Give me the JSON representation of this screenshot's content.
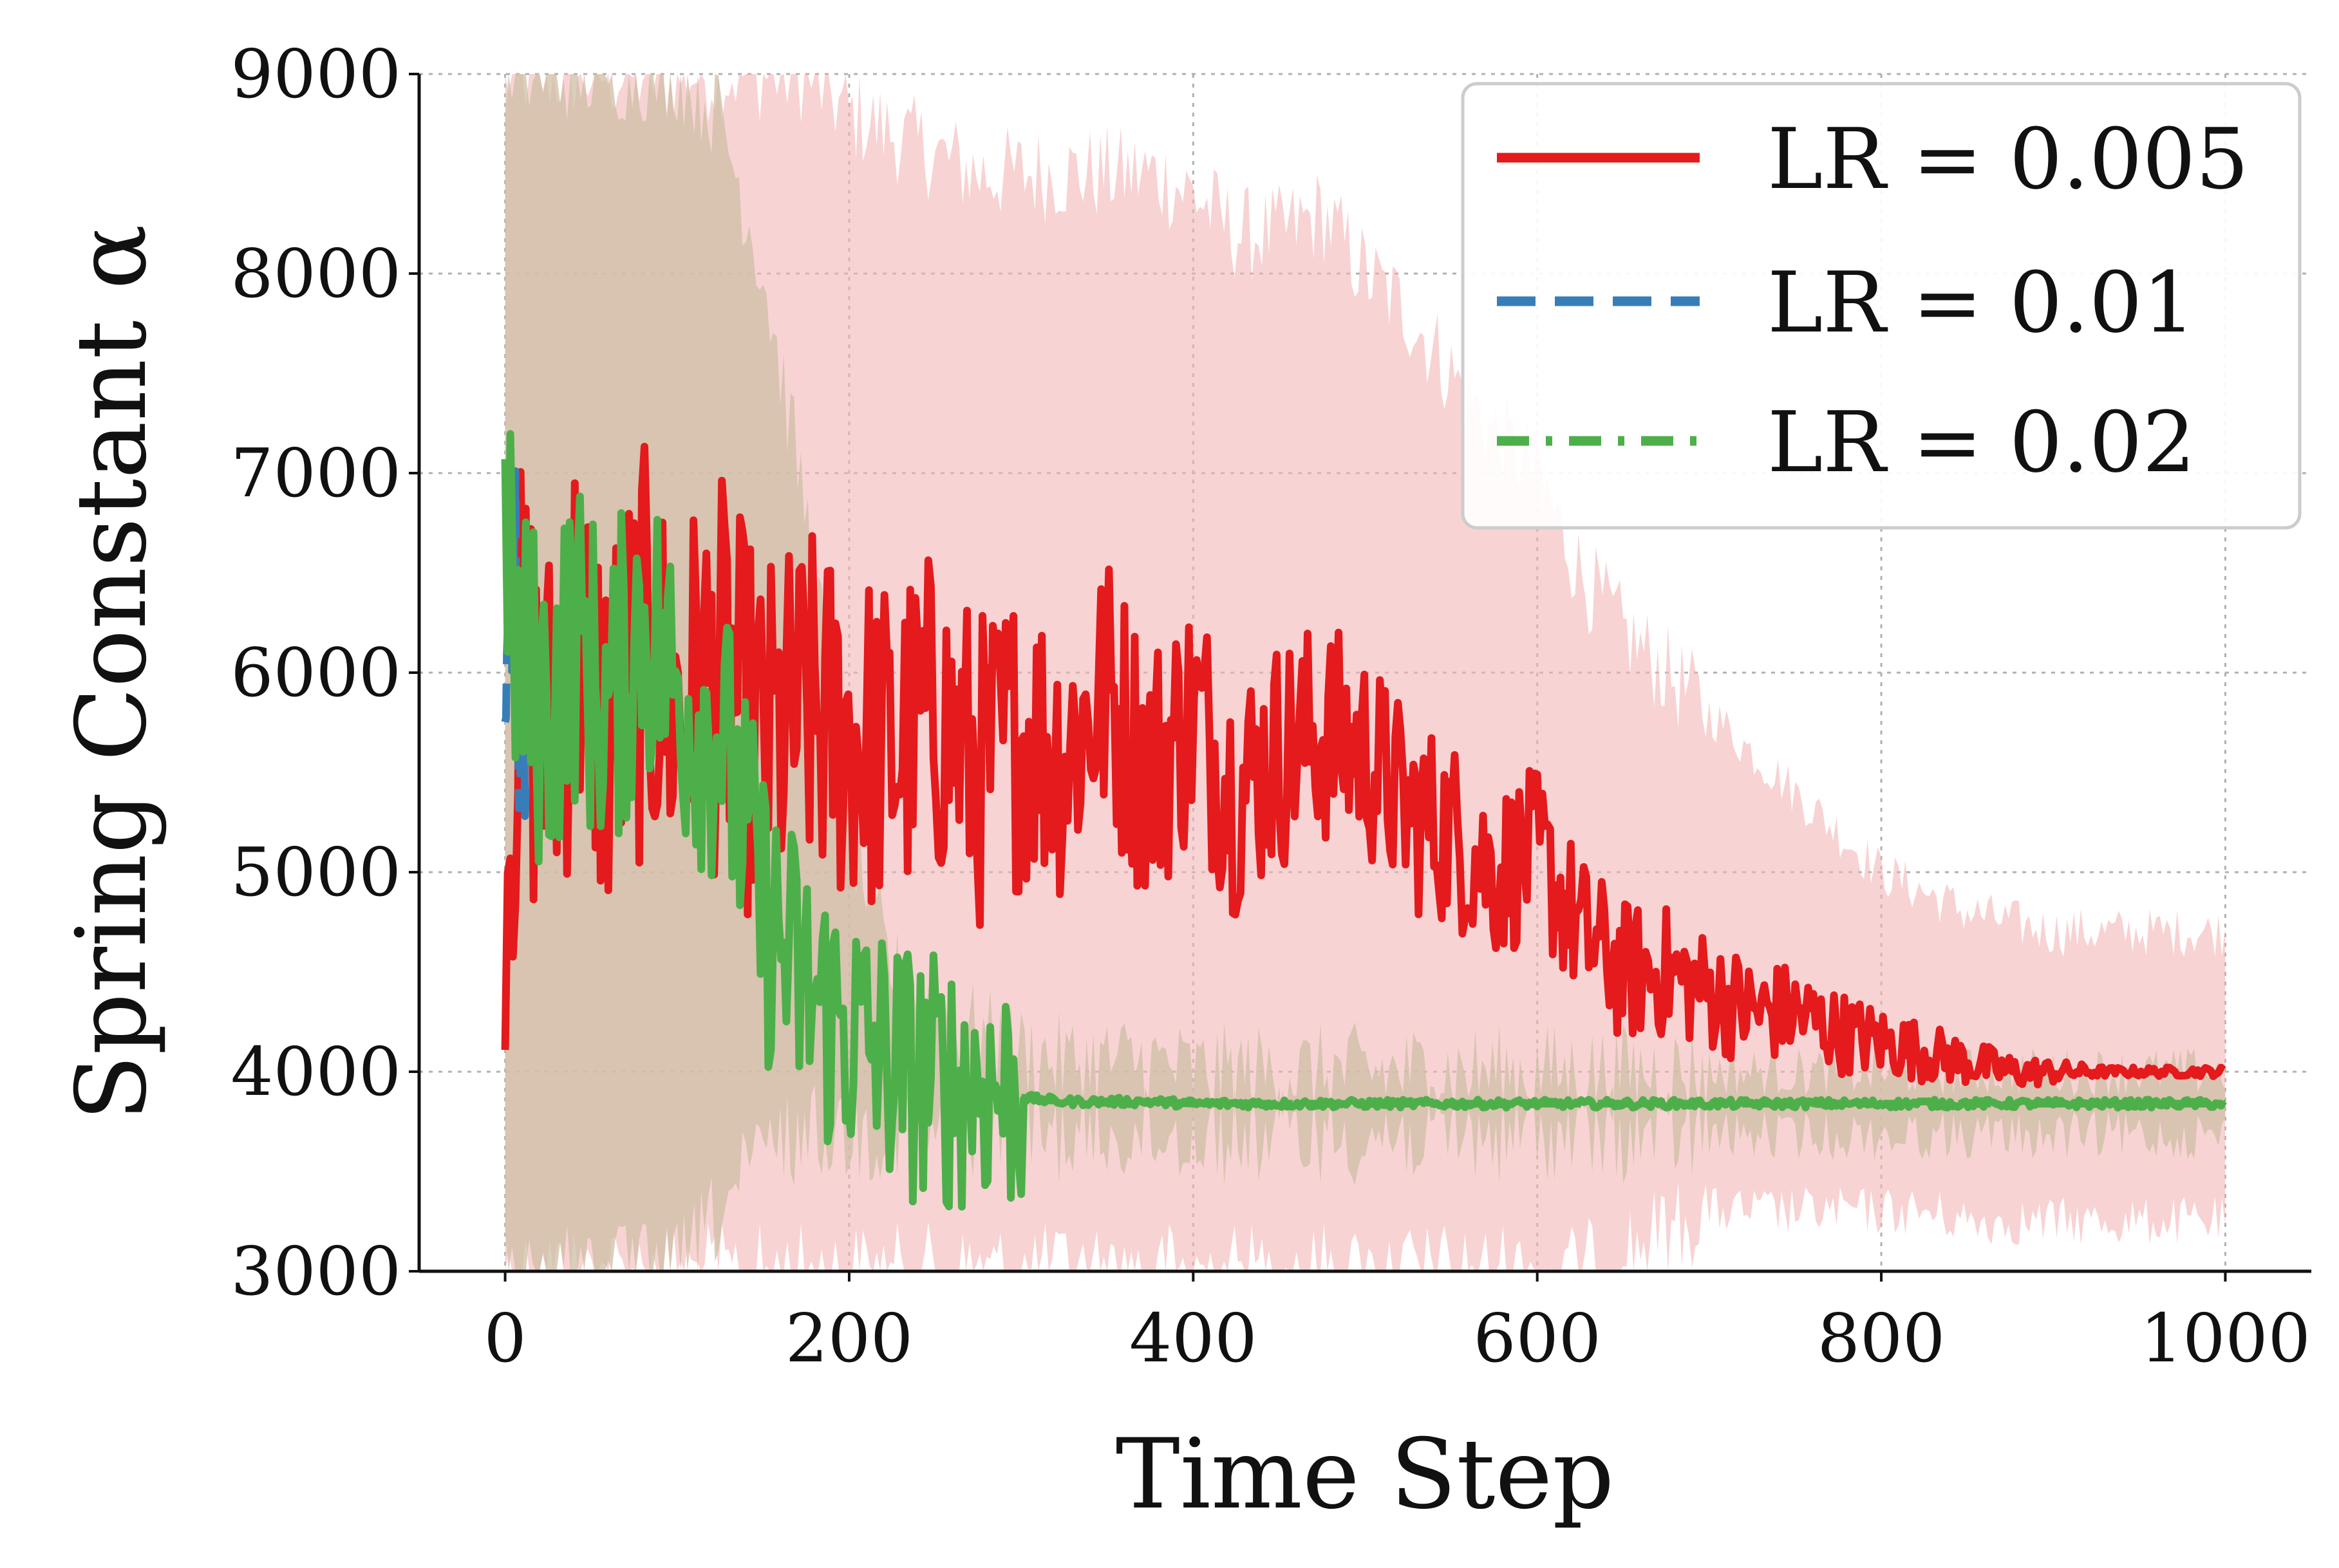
{
  "chart_data": {
    "type": "line",
    "xlabel": "Time Step",
    "ylabel": "Spring Constant α",
    "xlim": [
      -50,
      1050
    ],
    "ylim": [
      3000,
      9000
    ],
    "xticks": [
      0,
      200,
      400,
      600,
      800,
      1000
    ],
    "yticks": [
      3000,
      4000,
      5000,
      6000,
      7000,
      8000,
      9000
    ],
    "grid": true,
    "legend_position": "top-right",
    "series": [
      {
        "name": "LR = 0.005",
        "color": "#e41a1c",
        "line_style": "solid",
        "band_color": "#f4b6b8",
        "x": [
          0,
          10,
          25,
          40,
          60,
          80,
          100,
          125,
          150,
          175,
          200,
          225,
          250,
          275,
          300,
          325,
          350,
          375,
          400,
          425,
          450,
          475,
          500,
          525,
          550,
          575,
          600,
          625,
          650,
          675,
          700,
          725,
          750,
          775,
          800,
          825,
          850,
          875,
          900,
          950,
          1000
        ],
        "values": [
          5200,
          6000,
          5600,
          6200,
          5700,
          6100,
          5800,
          6000,
          5600,
          5800,
          5700,
          5600,
          5800,
          5500,
          5700,
          5600,
          5900,
          5500,
          5800,
          5400,
          5600,
          5700,
          5600,
          5300,
          5200,
          5000,
          5100,
          4700,
          4500,
          4500,
          4400,
          4300,
          4300,
          4200,
          4150,
          4100,
          4050,
          4000,
          4000,
          4000,
          4000
        ],
        "band_upper": [
          9000,
          9000,
          9000,
          9000,
          9000,
          9000,
          9000,
          9000,
          9000,
          9000,
          8800,
          8700,
          8600,
          8500,
          8500,
          8500,
          8500,
          8500,
          8400,
          8200,
          8200,
          8300,
          8000,
          7800,
          7500,
          7200,
          7000,
          6500,
          6200,
          6000,
          5800,
          5600,
          5400,
          5200,
          5000,
          4900,
          4800,
          4750,
          4700,
          4700,
          4700
        ],
        "band_lower": [
          3000,
          3000,
          3000,
          3000,
          3000,
          3000,
          3000,
          3000,
          3000,
          3000,
          3000,
          3000,
          3000,
          3000,
          3000,
          3000,
          3000,
          3000,
          3000,
          3000,
          3000,
          3000,
          3000,
          3000,
          3000,
          3000,
          3000,
          3000,
          3100,
          3200,
          3300,
          3300,
          3300,
          3300,
          3300,
          3300,
          3250,
          3250,
          3250,
          3250,
          3250
        ],
        "noise": 1150
      },
      {
        "name": "LR = 0.01",
        "color": "#377eb8",
        "line_style": "dashed",
        "x": [
          0,
          2,
          4,
          6,
          8,
          10,
          12,
          14,
          16
        ],
        "values": [
          5600,
          6800,
          6200,
          6900,
          5300,
          6100,
          5400,
          6400,
          5900
        ],
        "noise": 300
      },
      {
        "name": "LR = 0.02",
        "color": "#4daf4a",
        "line_style": "dashdot",
        "band_color": "#cdbfa4",
        "x": [
          0,
          10,
          25,
          40,
          60,
          80,
          100,
          125,
          150,
          175,
          200,
          225,
          250,
          275,
          300,
          325,
          350,
          375,
          400,
          450,
          500,
          600,
          700,
          800,
          900,
          1000
        ],
        "values": [
          6500,
          6000,
          5800,
          6200,
          5800,
          6300,
          5900,
          5700,
          4800,
          4400,
          4200,
          4050,
          3950,
          3950,
          3870,
          3850,
          3850,
          3850,
          3840,
          3840,
          3840,
          3840,
          3840,
          3840,
          3840,
          3840
        ],
        "band_upper": [
          9000,
          9000,
          9000,
          9000,
          9000,
          9000,
          9000,
          8800,
          8000,
          6800,
          5200,
          4500,
          4300,
          4200,
          4100,
          4050,
          4050,
          4050,
          4000,
          4000,
          4000,
          4000,
          4000,
          4000,
          4000,
          4000
        ],
        "band_lower": [
          3000,
          3000,
          3000,
          3000,
          3000,
          3000,
          3000,
          3300,
          3600,
          3700,
          3700,
          3700,
          3700,
          3700,
          3700,
          3680,
          3680,
          3680,
          3680,
          3680,
          3680,
          3680,
          3680,
          3680,
          3680,
          3680
        ],
        "noise": 900
      }
    ]
  }
}
